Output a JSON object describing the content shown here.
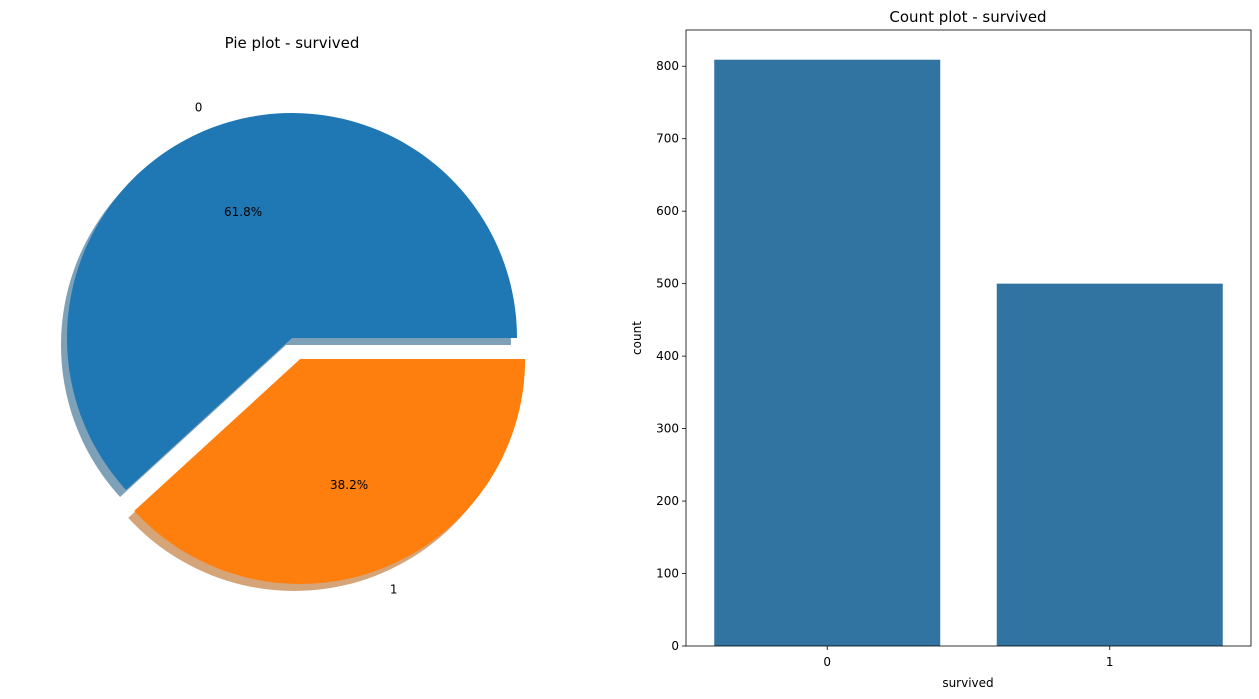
{
  "chart_data": [
    {
      "type": "pie",
      "title": "Pie plot - survived",
      "labels": [
        "0",
        "1"
      ],
      "values": [
        61.8,
        38.2
      ],
      "value_labels": [
        "61.8%",
        "38.2%"
      ],
      "explode": [
        0,
        0.1
      ],
      "shadow": true,
      "colors": [
        "#1f77b4",
        "#ff7f0e"
      ]
    },
    {
      "type": "bar",
      "title": "Count plot - survived",
      "categories": [
        "0",
        "1"
      ],
      "values": [
        809,
        500
      ],
      "xlabel": "survived",
      "ylabel": "count",
      "ylim": [
        0,
        850
      ],
      "yticks": [
        0,
        100,
        200,
        300,
        400,
        500,
        600,
        700,
        800
      ],
      "grid": false,
      "color": "#3274a1"
    }
  ]
}
